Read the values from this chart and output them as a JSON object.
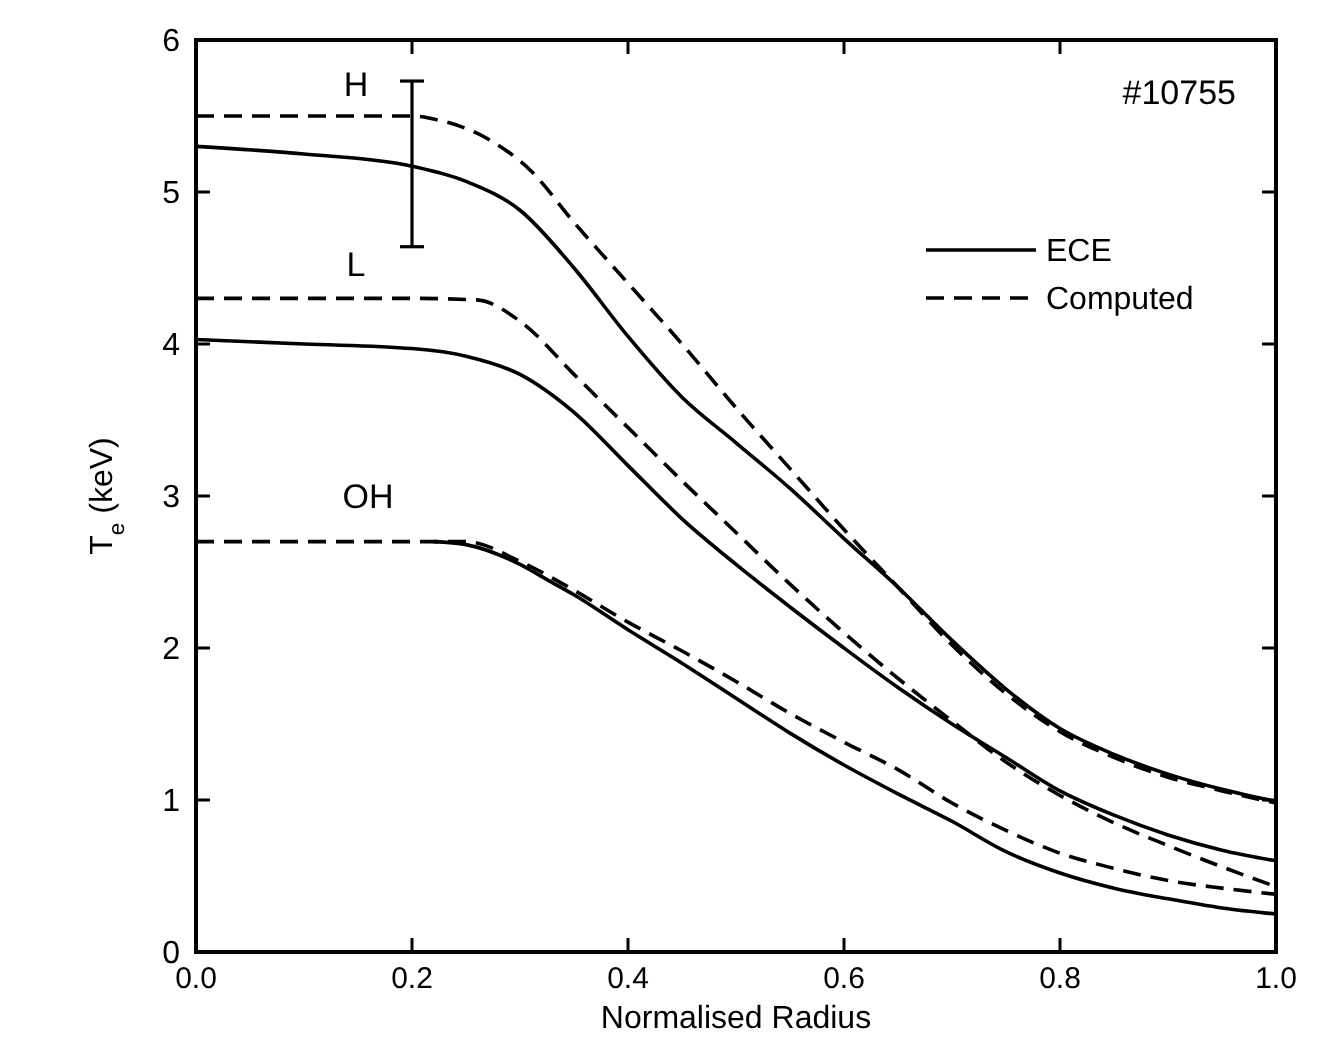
{
  "chart_data": {
    "type": "line",
    "xlabel": "Normalised Radius",
    "ylabel": "T$_{e}$ (keV)",
    "xlim": [
      0,
      1
    ],
    "ylim": [
      0,
      6
    ],
    "xticks": [
      {
        "value": 0,
        "label": "0.0"
      },
      {
        "value": 0.2,
        "label": "0.2"
      },
      {
        "value": 0.4,
        "label": "0.4"
      },
      {
        "value": 0.6,
        "label": "0.6"
      },
      {
        "value": 0.8,
        "label": "0.8"
      },
      {
        "value": 1,
        "label": "1.0"
      }
    ],
    "yticks": [
      0,
      1,
      2,
      3,
      4,
      5,
      6
    ],
    "grid": false,
    "legend": "top right",
    "marker": "none",
    "annotations": [
      "#10755",
      "H",
      "L",
      "OH"
    ],
    "series": [
      {
        "name": "ECE",
        "color": "#000000",
        "line_style": "solid",
        "x": [
          0,
          0.1,
          0.2,
          0.25,
          0.3,
          0.35,
          0.4,
          0.45,
          0.5,
          0.55,
          0.6,
          0.65,
          0.7,
          0.75,
          0.8,
          0.85,
          0.9,
          0.95,
          1
        ],
        "values": [
          5.3,
          5.25,
          5.17,
          5.07,
          4.88,
          4.5,
          4.05,
          3.65,
          3.35,
          3.05,
          2.72,
          2.4,
          2.05,
          1.73,
          1.47,
          1.3,
          1.17,
          1.07,
          0.99
        ],
        "errors": [
          null,
          null,
          [
            4.64,
            5.73
          ],
          null,
          null,
          null,
          null,
          null,
          null,
          null,
          null,
          null,
          null,
          null,
          null,
          null,
          null,
          null,
          null
        ]
      },
      {
        "name": "Computed",
        "color": "#000000",
        "line_style": "dashed",
        "x": [
          0,
          0.1,
          0.2,
          0.22,
          0.27,
          0.31,
          0.35,
          0.4,
          0.45,
          0.5,
          0.55,
          0.6,
          0.65,
          0.7,
          0.75,
          0.8,
          0.85,
          0.9,
          0.95,
          1
        ],
        "values": [
          5.5,
          5.5,
          5.5,
          5.48,
          5.35,
          5.14,
          4.8,
          4.4,
          4.0,
          3.58,
          3.18,
          2.78,
          2.4,
          2.02,
          1.7,
          1.45,
          1.28,
          1.15,
          1.06,
          0.98
        ]
      },
      {
        "color": "#000000",
        "line_style": "solid",
        "x": [
          0,
          0.1,
          0.2,
          0.25,
          0.3,
          0.35,
          0.4,
          0.45,
          0.5,
          0.55,
          0.6,
          0.65,
          0.7,
          0.75,
          0.8,
          0.85,
          0.9,
          0.95,
          1
        ],
        "values": [
          4.03,
          4.0,
          3.97,
          3.92,
          3.8,
          3.55,
          3.2,
          2.85,
          2.55,
          2.27,
          2.0,
          1.74,
          1.5,
          1.28,
          1.06,
          0.9,
          0.77,
          0.67,
          0.6
        ]
      },
      {
        "color": "#000000",
        "line_style": "dashed",
        "x": [
          0,
          0.1,
          0.2,
          0.26,
          0.3,
          0.35,
          0.4,
          0.45,
          0.5,
          0.55,
          0.6,
          0.65,
          0.7,
          0.75,
          0.8,
          0.85,
          0.9,
          0.95,
          1
        ],
        "values": [
          4.3,
          4.3,
          4.3,
          4.29,
          4.15,
          3.8,
          3.45,
          3.1,
          2.76,
          2.42,
          2.1,
          1.8,
          1.52,
          1.25,
          1.03,
          0.85,
          0.7,
          0.56,
          0.43
        ]
      },
      {
        "color": "#000000",
        "line_style": "solid",
        "x": [
          0.22,
          0.25,
          0.3,
          0.325,
          0.35,
          0.4,
          0.45,
          0.5,
          0.55,
          0.6,
          0.65,
          0.7,
          0.75,
          0.8,
          0.85,
          0.9,
          0.95,
          1
        ],
        "values": [
          2.7,
          2.68,
          2.55,
          2.45,
          2.35,
          2.12,
          1.9,
          1.67,
          1.44,
          1.23,
          1.04,
          0.86,
          0.66,
          0.52,
          0.42,
          0.35,
          0.29,
          0.25
        ]
      },
      {
        "color": "#000000",
        "line_style": "dashed",
        "x": [
          0,
          0.1,
          0.2,
          0.25,
          0.3,
          0.35,
          0.4,
          0.45,
          0.5,
          0.55,
          0.6,
          0.65,
          0.7,
          0.75,
          0.8,
          0.85,
          0.9,
          0.95,
          1
        ],
        "values": [
          2.7,
          2.7,
          2.7,
          2.7,
          2.57,
          2.38,
          2.17,
          1.98,
          1.78,
          1.57,
          1.38,
          1.2,
          0.98,
          0.8,
          0.65,
          0.55,
          0.47,
          0.42,
          0.38
        ]
      }
    ]
  }
}
